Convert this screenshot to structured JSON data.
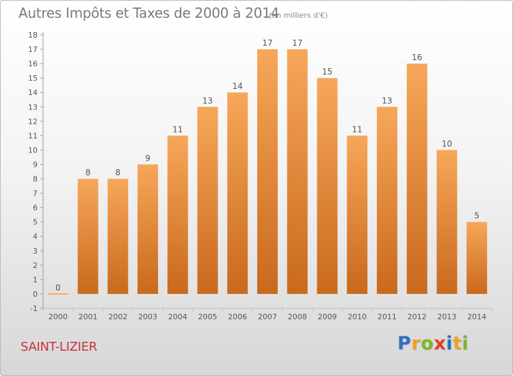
{
  "title": "Autres Impôts et Taxes de 2000 à 2014",
  "unit_note": "(en milliers d'€)",
  "town": "SAINT-LIZIER",
  "logo": {
    "letters": [
      "P",
      "r",
      "o",
      "x",
      "i",
      "t",
      "i"
    ],
    "colors": [
      "#2f6fc0",
      "#f0a21e",
      "#7bb82a",
      "#e53a2b",
      "#2f6fc0",
      "#f0a21e",
      "#7bb82a"
    ]
  },
  "colors": {
    "bar_light": "#f7a75a",
    "bar_dark": "#c9691c",
    "axis": "#999999",
    "title": "#7a7a7a",
    "town": "#c9313f"
  },
  "chart_data": {
    "type": "bar",
    "categories": [
      "2000",
      "2001",
      "2002",
      "2003",
      "2004",
      "2005",
      "2006",
      "2007",
      "2008",
      "2009",
      "2010",
      "2011",
      "2012",
      "2013",
      "2014"
    ],
    "values": [
      0,
      8,
      8,
      9,
      11,
      13,
      14,
      17,
      17,
      15,
      11,
      13,
      16,
      10,
      5
    ],
    "ylim": [
      -1,
      18
    ],
    "yticks": [
      -1,
      0,
      1,
      2,
      3,
      4,
      5,
      6,
      7,
      8,
      9,
      10,
      11,
      12,
      13,
      14,
      15,
      16,
      17,
      18
    ],
    "xlabel": "",
    "ylabel": "",
    "grid": false,
    "data_labels": true
  }
}
